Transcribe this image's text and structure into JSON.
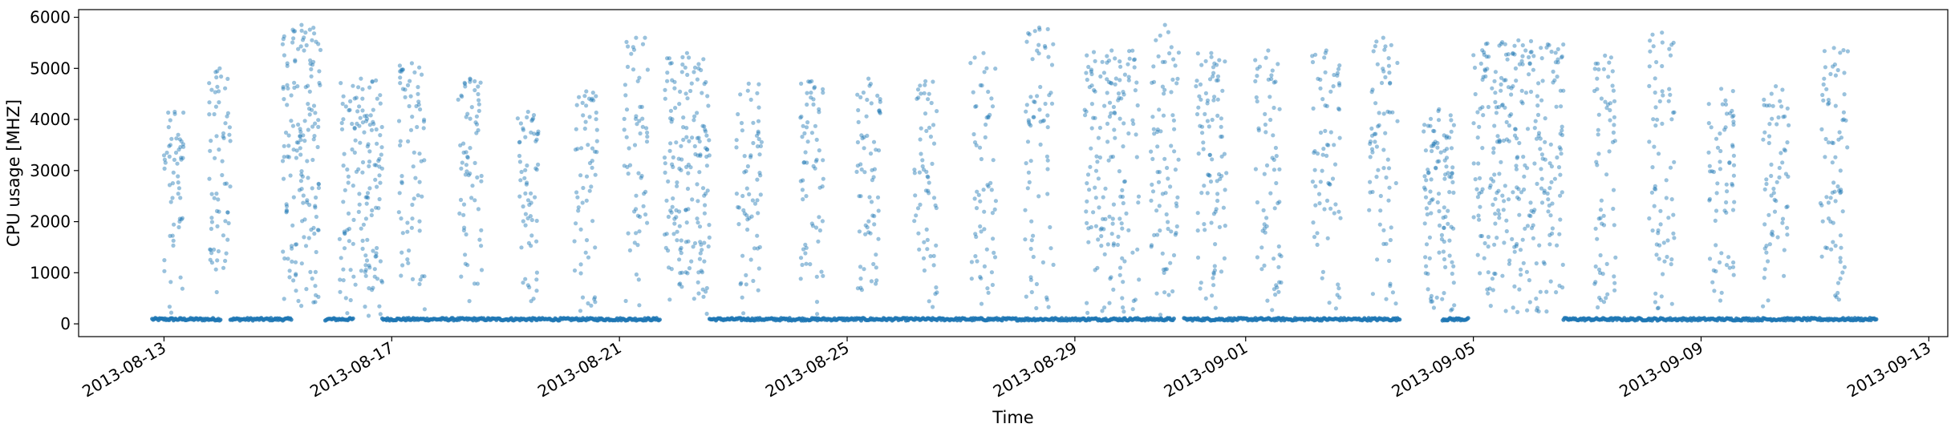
{
  "chart_data": {
    "type": "scatter",
    "title": "",
    "xlabel": "Time",
    "ylabel": "CPU usage [MHZ]",
    "ylim": [
      -250,
      6150
    ],
    "xlim": [
      "2013-08-11T12:00",
      "2013-09-13T08:00"
    ],
    "x_ticks": [
      "2013-08-13",
      "2013-08-17",
      "2013-08-21",
      "2013-08-25",
      "2013-08-29",
      "2013-09-01",
      "2013-09-05",
      "2013-09-09",
      "2013-09-13"
    ],
    "y_ticks": [
      0,
      1000,
      2000,
      3000,
      4000,
      5000,
      6000
    ],
    "series": [
      {
        "name": "CPU usage",
        "color": "#1f77b4",
        "baseline_value": 90,
        "baseline_segments": [
          [
            "2013-08-12T19:00",
            "2013-08-14T00:00"
          ],
          [
            "2013-08-14T04:00",
            "2013-08-15T06:00"
          ],
          [
            "2013-08-15T20:00",
            "2013-08-16T08:00"
          ],
          [
            "2013-08-16T20:00",
            "2013-08-21T17:00"
          ],
          [
            "2013-08-22T14:00",
            "2013-08-30T18:00"
          ],
          [
            "2013-08-30T22:00",
            "2013-09-03T17:00"
          ],
          [
            "2013-09-04T11:00",
            "2013-09-04T22:00"
          ],
          [
            "2013-09-06T14:00",
            "2013-09-12T02:00"
          ]
        ],
        "spikes": [
          {
            "start": "2013-08-13T00:00",
            "end": "2013-08-13T09:00",
            "peak": 4150,
            "count": 55
          },
          {
            "start": "2013-08-13T19:00",
            "end": "2013-08-14T04:00",
            "peak": 5000,
            "count": 65
          },
          {
            "start": "2013-08-15T02:00",
            "end": "2013-08-15T18:00",
            "peak": 5850,
            "count": 160
          },
          {
            "start": "2013-08-16T02:00",
            "end": "2013-08-16T20:00",
            "peak": 4800,
            "count": 150
          },
          {
            "start": "2013-08-17T03:00",
            "end": "2013-08-17T14:00",
            "peak": 5100,
            "count": 70
          },
          {
            "start": "2013-08-18T04:00",
            "end": "2013-08-18T14:00",
            "peak": 4800,
            "count": 65
          },
          {
            "start": "2013-08-19T05:00",
            "end": "2013-08-19T14:00",
            "peak": 4150,
            "count": 60
          },
          {
            "start": "2013-08-20T05:00",
            "end": "2013-08-20T15:00",
            "peak": 4550,
            "count": 60
          },
          {
            "start": "2013-08-21T02:00",
            "end": "2013-08-21T12:00",
            "peak": 5600,
            "count": 60
          },
          {
            "start": "2013-08-21T19:00",
            "end": "2013-08-22T14:00",
            "peak": 5300,
            "count": 170
          },
          {
            "start": "2013-08-23T01:00",
            "end": "2013-08-23T12:00",
            "peak": 4700,
            "count": 65
          },
          {
            "start": "2013-08-24T04:00",
            "end": "2013-08-24T14:00",
            "peak": 4750,
            "count": 65
          },
          {
            "start": "2013-08-25T04:00",
            "end": "2013-08-25T14:00",
            "peak": 4800,
            "count": 65
          },
          {
            "start": "2013-08-26T04:00",
            "end": "2013-08-26T14:00",
            "peak": 4750,
            "count": 60
          },
          {
            "start": "2013-08-27T04:00",
            "end": "2013-08-27T15:00",
            "peak": 5300,
            "count": 60
          },
          {
            "start": "2013-08-28T03:00",
            "end": "2013-08-28T15:00",
            "peak": 5800,
            "count": 70
          },
          {
            "start": "2013-08-29T04:00",
            "end": "2013-08-30T03:00",
            "peak": 5350,
            "count": 160
          },
          {
            "start": "2013-08-30T08:00",
            "end": "2013-08-30T20:00",
            "peak": 5850,
            "count": 80
          },
          {
            "start": "2013-08-31T03:00",
            "end": "2013-08-31T16:00",
            "peak": 5300,
            "count": 90
          },
          {
            "start": "2013-09-01T04:00",
            "end": "2013-09-01T15:00",
            "peak": 5350,
            "count": 65
          },
          {
            "start": "2013-09-02T04:00",
            "end": "2013-09-02T16:00",
            "peak": 5350,
            "count": 70
          },
          {
            "start": "2013-09-03T04:00",
            "end": "2013-09-03T16:00",
            "peak": 5600,
            "count": 70
          },
          {
            "start": "2013-09-04T03:00",
            "end": "2013-09-04T16:00",
            "peak": 4200,
            "count": 110
          },
          {
            "start": "2013-09-05T00:00",
            "end": "2013-09-06T14:00",
            "peak": 5550,
            "count": 300
          },
          {
            "start": "2013-09-07T03:00",
            "end": "2013-09-07T12:00",
            "peak": 5250,
            "count": 65
          },
          {
            "start": "2013-09-08T02:00",
            "end": "2013-09-08T13:00",
            "peak": 5700,
            "count": 70
          },
          {
            "start": "2013-09-09T03:00",
            "end": "2013-09-09T14:00",
            "peak": 4600,
            "count": 65
          },
          {
            "start": "2013-09-10T02:00",
            "end": "2013-09-10T13:00",
            "peak": 4650,
            "count": 65
          },
          {
            "start": "2013-09-11T02:00",
            "end": "2013-09-11T14:00",
            "peak": 5400,
            "count": 75
          }
        ]
      }
    ]
  }
}
